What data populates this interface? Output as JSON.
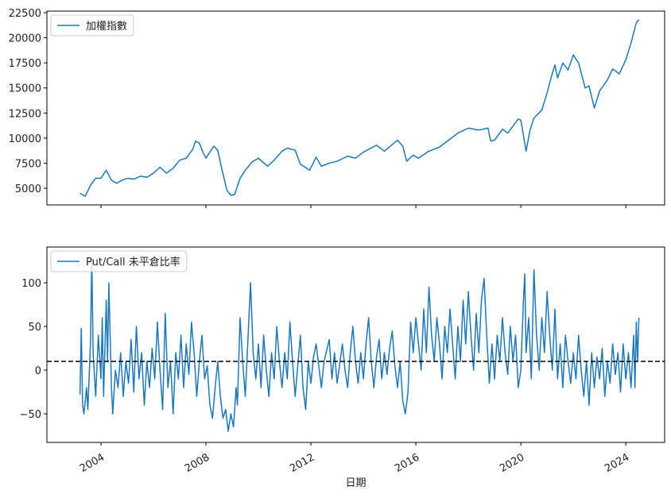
{
  "chart_data": [
    {
      "type": "line",
      "legend": "upper left",
      "x": [
        2003.2,
        2003.4,
        2003.6,
        2003.8,
        2004.0,
        2004.2,
        2004.4,
        2004.6,
        2004.8,
        2005.0,
        2005.25,
        2005.5,
        2005.75,
        2006.0,
        2006.25,
        2006.5,
        2006.75,
        2007.0,
        2007.25,
        2007.5,
        2007.6,
        2007.75,
        2007.9,
        2008.0,
        2008.3,
        2008.45,
        2008.6,
        2008.8,
        2008.95,
        2009.1,
        2009.3,
        2009.5,
        2009.75,
        2010.0,
        2010.35,
        2010.6,
        2010.9,
        2011.1,
        2011.4,
        2011.6,
        2011.95,
        2012.2,
        2012.4,
        2012.7,
        2013.0,
        2013.4,
        2013.7,
        2014.0,
        2014.5,
        2014.8,
        2015.3,
        2015.5,
        2015.65,
        2015.9,
        2016.1,
        2016.5,
        2016.9,
        2017.3,
        2017.6,
        2018.0,
        2018.4,
        2018.75,
        2018.85,
        2019.0,
        2019.3,
        2019.5,
        2019.9,
        2020.0,
        2020.2,
        2020.35,
        2020.5,
        2020.8,
        2021.0,
        2021.15,
        2021.3,
        2021.4,
        2021.6,
        2021.8,
        2022.0,
        2022.2,
        2022.45,
        2022.6,
        2022.8,
        2023.0,
        2023.3,
        2023.5,
        2023.75,
        2024.0,
        2024.2,
        2024.4,
        2024.5
      ],
      "series": [
        {
          "name": "加權指數",
          "color": "#1f77b4",
          "values": [
            4500,
            4200,
            5300,
            6000,
            6000,
            6800,
            5800,
            5500,
            5800,
            6000,
            5900,
            6200,
            6100,
            6500,
            7100,
            6500,
            7000,
            7800,
            8000,
            8900,
            9700,
            9500,
            8500,
            8000,
            9200,
            8800,
            7000,
            4800,
            4300,
            4400,
            6000,
            6800,
            7600,
            8000,
            7200,
            7800,
            8700,
            9000,
            8800,
            7400,
            6800,
            8100,
            7200,
            7500,
            7700,
            8200,
            8000,
            8600,
            9300,
            8700,
            9800,
            9200,
            7700,
            8300,
            8000,
            8700,
            9100,
            9900,
            10500,
            11000,
            10800,
            11000,
            9700,
            9800,
            10900,
            10500,
            11900,
            11800,
            8700,
            10800,
            12000,
            12800,
            14500,
            16000,
            17300,
            16000,
            17500,
            16800,
            18300,
            17500,
            15000,
            15200,
            13000,
            14700,
            15800,
            16900,
            16400,
            17800,
            19500,
            21500,
            21800
          ]
        }
      ],
      "xlim": [
        2001.94,
        2025.48
      ],
      "xticks": [
        2004,
        2008,
        2012,
        2016,
        2020,
        2024
      ],
      "ylim": [
        3340,
        22660
      ],
      "yticks": [
        5000,
        7500,
        10000,
        12500,
        15000,
        17500,
        20000,
        22500
      ]
    },
    {
      "type": "line",
      "legend": "upper left",
      "xlabel": "日期",
      "hline": 10,
      "x": [
        2003.2,
        2003.25,
        2003.3,
        2003.35,
        2003.45,
        2003.5,
        2003.6,
        2003.65,
        2003.7,
        2003.8,
        2003.9,
        2004.0,
        2004.05,
        2004.1,
        2004.2,
        2004.25,
        2004.3,
        2004.4,
        2004.45,
        2004.55,
        2004.65,
        2004.75,
        2004.85,
        2004.95,
        2005.05,
        2005.15,
        2005.25,
        2005.35,
        2005.45,
        2005.55,
        2005.65,
        2005.75,
        2005.85,
        2005.95,
        2006.05,
        2006.15,
        2006.25,
        2006.35,
        2006.45,
        2006.55,
        2006.65,
        2006.75,
        2006.85,
        2006.95,
        2007.05,
        2007.15,
        2007.25,
        2007.35,
        2007.45,
        2007.55,
        2007.65,
        2007.75,
        2007.85,
        2007.95,
        2008.05,
        2008.15,
        2008.25,
        2008.35,
        2008.45,
        2008.55,
        2008.65,
        2008.75,
        2008.85,
        2008.95,
        2009.05,
        2009.15,
        2009.2,
        2009.3,
        2009.4,
        2009.5,
        2009.6,
        2009.7,
        2009.8,
        2009.9,
        2010.0,
        2010.1,
        2010.2,
        2010.3,
        2010.4,
        2010.5,
        2010.6,
        2010.7,
        2010.8,
        2010.9,
        2011.0,
        2011.1,
        2011.2,
        2011.3,
        2011.4,
        2011.5,
        2011.6,
        2011.7,
        2011.8,
        2011.9,
        2012.0,
        2012.1,
        2012.2,
        2012.3,
        2012.4,
        2012.5,
        2012.7,
        2012.8,
        2012.9,
        2013.0,
        2013.2,
        2013.3,
        2013.4,
        2013.5,
        2013.6,
        2013.7,
        2013.8,
        2013.9,
        2014.0,
        2014.1,
        2014.2,
        2014.3,
        2014.4,
        2014.5,
        2014.6,
        2014.7,
        2014.8,
        2014.9,
        2015.0,
        2015.1,
        2015.2,
        2015.3,
        2015.4,
        2015.5,
        2015.6,
        2015.7,
        2015.8,
        2015.9,
        2016.0,
        2016.1,
        2016.2,
        2016.3,
        2016.4,
        2016.5,
        2016.6,
        2016.7,
        2016.8,
        2016.9,
        2017.0,
        2017.1,
        2017.2,
        2017.3,
        2017.4,
        2017.5,
        2017.6,
        2017.7,
        2017.8,
        2017.9,
        2018.0,
        2018.1,
        2018.2,
        2018.3,
        2018.4,
        2018.5,
        2018.6,
        2018.7,
        2018.8,
        2018.9,
        2019.0,
        2019.1,
        2019.2,
        2019.3,
        2019.4,
        2019.5,
        2019.6,
        2019.7,
        2019.8,
        2019.9,
        2020.0,
        2020.1,
        2020.15,
        2020.2,
        2020.3,
        2020.4,
        2020.5,
        2020.6,
        2020.7,
        2020.8,
        2020.9,
        2021.0,
        2021.1,
        2021.2,
        2021.3,
        2021.4,
        2021.5,
        2021.6,
        2021.7,
        2021.8,
        2021.9,
        2022.0,
        2022.1,
        2022.2,
        2022.3,
        2022.4,
        2022.5,
        2022.6,
        2022.7,
        2022.8,
        2022.9,
        2023.0,
        2023.1,
        2023.2,
        2023.3,
        2023.4,
        2023.5,
        2023.6,
        2023.7,
        2023.8,
        2023.9,
        2024.0,
        2024.1,
        2024.2,
        2024.3,
        2024.35,
        2024.4,
        2024.45,
        2024.5
      ],
      "series": [
        {
          "name": "Put/Call 未平倉比率",
          "color": "#1f77b4",
          "values": [
            -28,
            48,
            -40,
            -50,
            -20,
            -45,
            30,
            128,
            20,
            -30,
            40,
            -10,
            60,
            -30,
            80,
            10,
            100,
            -20,
            -50,
            0,
            -20,
            20,
            -30,
            10,
            -15,
            35,
            -25,
            50,
            -10,
            20,
            -40,
            10,
            -20,
            25,
            -10,
            55,
            0,
            -45,
            65,
            -20,
            10,
            -50,
            20,
            -10,
            40,
            -20,
            30,
            -5,
            55,
            20,
            -30,
            10,
            40,
            -10,
            5,
            -40,
            -55,
            -20,
            10,
            -30,
            -55,
            -45,
            -70,
            -50,
            -65,
            -20,
            -40,
            60,
            10,
            -30,
            35,
            100,
            20,
            -10,
            30,
            -20,
            40,
            0,
            -30,
            20,
            -10,
            50,
            10,
            -20,
            20,
            -10,
            55,
            10,
            -30,
            5,
            40,
            -20,
            -45,
            10,
            -15,
            15,
            30,
            5,
            -20,
            10,
            35,
            -10,
            20,
            -15,
            30,
            0,
            -20,
            20,
            50,
            10,
            -15,
            20,
            -10,
            30,
            60,
            10,
            -20,
            15,
            35,
            -10,
            20,
            -5,
            25,
            45,
            5,
            -20,
            10,
            -35,
            -50,
            -25,
            55,
            20,
            60,
            30,
            0,
            70,
            20,
            95,
            40,
            10,
            60,
            30,
            -10,
            50,
            20,
            70,
            30,
            -10,
            50,
            10,
            80,
            30,
            90,
            40,
            0,
            65,
            20,
            80,
            105,
            40,
            -15,
            30,
            -10,
            40,
            10,
            60,
            20,
            -5,
            50,
            10,
            40,
            -20,
            0,
            80,
            110,
            20,
            60,
            -10,
            115,
            40,
            0,
            60,
            20,
            90,
            40,
            0,
            70,
            -10,
            30,
            -20,
            40,
            10,
            -15,
            20,
            -10,
            40,
            0,
            -30,
            10,
            -40,
            20,
            -20,
            15,
            -10,
            25,
            -30,
            10,
            -15,
            30,
            -5,
            20,
            -25,
            30,
            -10,
            20,
            -20,
            40,
            -20,
            55,
            10,
            60
          ]
        }
      ],
      "xlim": [
        2001.94,
        2025.48
      ],
      "xticks": [
        2004,
        2008,
        2012,
        2016,
        2020,
        2024
      ],
      "ylim": [
        -82.7,
        140.9
      ],
      "yticks": [
        {
          "value": -50,
          "label": "−50"
        },
        0,
        50,
        100
      ]
    }
  ]
}
